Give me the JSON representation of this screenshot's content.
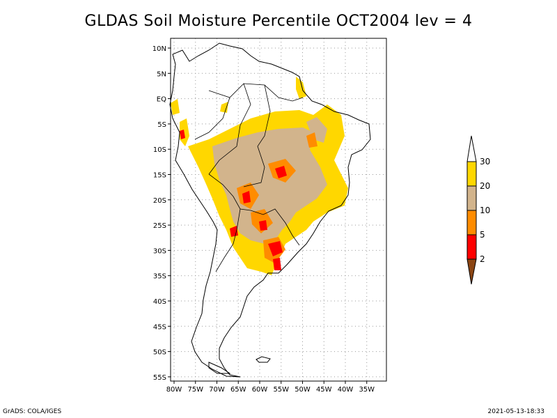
{
  "title": "GLDAS Soil Moisture Percentile OCT2004 lev = 4",
  "footer": {
    "left": "GrADS: COLA/IGES",
    "right": "2021-05-13-18:33"
  },
  "map": {
    "lon_range": [
      -80,
      -30
    ],
    "lat_range": [
      -56,
      12
    ],
    "lat_ticks": [
      "10N",
      "5N",
      "EQ",
      "5S",
      "10S",
      "15S",
      "20S",
      "25S",
      "30S",
      "35S",
      "40S",
      "45S",
      "50S",
      "55S"
    ],
    "lat_tick_values": [
      10,
      5,
      0,
      -5,
      -10,
      -15,
      -20,
      -25,
      -30,
      -35,
      -40,
      -45,
      -50,
      -55
    ],
    "lon_ticks": [
      "80W",
      "75W",
      "70W",
      "65W",
      "60W",
      "55W",
      "50W",
      "45W",
      "40W",
      "35W"
    ],
    "lon_tick_values": [
      -80,
      -75,
      -70,
      -65,
      -60,
      -55,
      -50,
      -45,
      -40,
      -35
    ],
    "grid": true
  },
  "legend": {
    "labels": [
      "30",
      "20",
      "10",
      "5",
      "2"
    ],
    "bins": [
      {
        "range": "<2",
        "color": "#8b4513"
      },
      {
        "range": "2-5",
        "color": "#ff0000"
      },
      {
        "range": "5-10",
        "color": "#ff8c00"
      },
      {
        "range": "10-20",
        "color": "#d2b48c"
      },
      {
        "range": "20-30",
        "color": "#ffd700"
      },
      {
        "range": ">30",
        "color": "#ffffff"
      }
    ]
  }
}
